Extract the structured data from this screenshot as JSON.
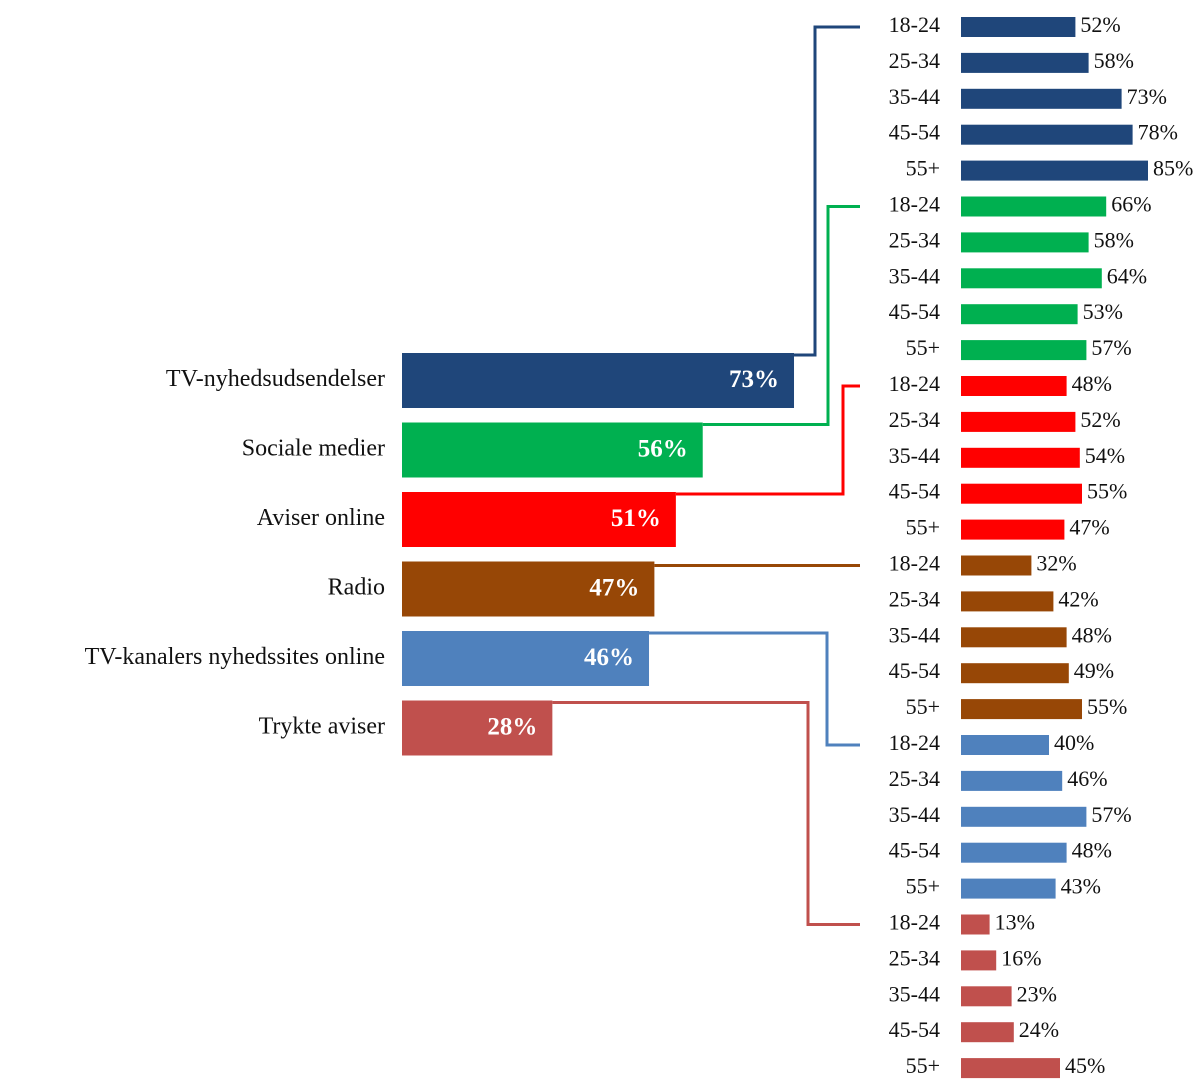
{
  "chart_data": {
    "type": "bar",
    "categories": [
      "TV-nyhedsudsendelser",
      "Sociale medier",
      "Aviser online",
      "Radio",
      "TV-kanalers nyhedssites online",
      "Trykte aviser"
    ],
    "values": [
      73,
      56,
      51,
      47,
      46,
      28
    ],
    "value_labels": [
      "73%",
      "56%",
      "51%",
      "47%",
      "46%",
      "28%"
    ],
    "colors": [
      "#1f467a",
      "#00b050",
      "#ff0000",
      "#974706",
      "#4f81bd",
      "#c0504d"
    ],
    "age_groups": [
      "18-24",
      "25-34",
      "35-44",
      "45-54",
      "55+"
    ],
    "breakdown": [
      {
        "values": [
          52,
          58,
          73,
          78,
          85
        ],
        "value_labels": [
          "52%",
          "58%",
          "73%",
          "78%",
          "85%"
        ]
      },
      {
        "values": [
          66,
          58,
          64,
          53,
          57
        ],
        "value_labels": [
          "66%",
          "58%",
          "64%",
          "53%",
          "57%"
        ]
      },
      {
        "values": [
          48,
          52,
          54,
          55,
          47
        ],
        "value_labels": [
          "48%",
          "52%",
          "54%",
          "55%",
          "47%"
        ]
      },
      {
        "values": [
          32,
          42,
          48,
          49,
          55
        ],
        "value_labels": [
          "32%",
          "42%",
          "48%",
          "49%",
          "55%"
        ]
      },
      {
        "values": [
          40,
          46,
          57,
          48,
          43
        ],
        "value_labels": [
          "40%",
          "46%",
          "57%",
          "48%",
          "43%"
        ]
      },
      {
        "values": [
          13,
          16,
          23,
          24,
          45
        ],
        "value_labels": [
          "13%",
          "16%",
          "23%",
          "24%",
          "45%"
        ]
      }
    ]
  }
}
